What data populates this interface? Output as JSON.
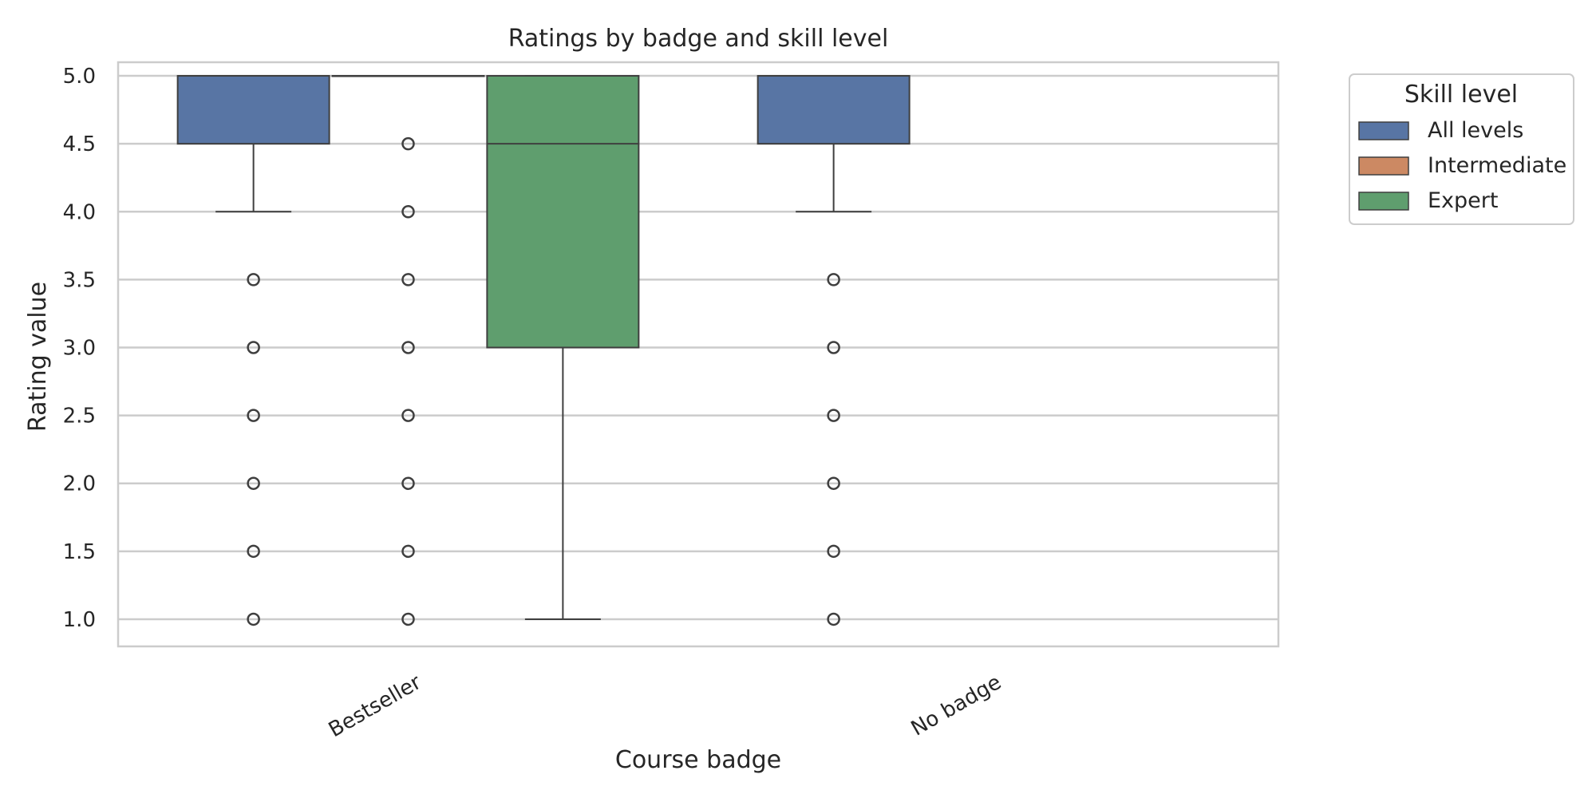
{
  "chart_data": {
    "type": "box",
    "title": "Ratings by badge and skill level",
    "xlabel": "Course badge",
    "ylabel": "Rating value",
    "categories": [
      "Bestseller",
      "No badge"
    ],
    "ylim": [
      0.8,
      5.1
    ],
    "yticks": [
      "1.0",
      "1.5",
      "2.0",
      "2.5",
      "3.0",
      "3.5",
      "4.0",
      "4.5",
      "5.0"
    ],
    "grid": true,
    "legend": {
      "title": "Skill level",
      "placement": "outside top-right",
      "entries": [
        {
          "name": "All levels",
          "color": "#5875a4"
        },
        {
          "name": "Intermediate",
          "color": "#cc8963"
        },
        {
          "name": "Expert",
          "color": "#5f9e6e"
        }
      ]
    },
    "series": [
      {
        "name": "All levels",
        "color": "#5875a4",
        "boxes": [
          {
            "category": "Bestseller",
            "min": 4.0,
            "q1": 4.5,
            "median": 5.0,
            "q3": 5.0,
            "max": 5.0,
            "outliers": [
              3.5,
              3.0,
              2.5,
              2.0,
              1.5,
              1.0
            ]
          },
          {
            "category": "No badge",
            "min": 4.0,
            "q1": 4.5,
            "median": 5.0,
            "q3": 5.0,
            "max": 5.0,
            "outliers": [
              3.5,
              3.0,
              2.5,
              2.0,
              1.5,
              1.0
            ]
          }
        ]
      },
      {
        "name": "Intermediate",
        "color": "#cc8963",
        "boxes": [
          {
            "category": "Bestseller",
            "min": 5.0,
            "q1": 5.0,
            "median": 5.0,
            "q3": 5.0,
            "max": 5.0,
            "outliers": [
              4.5,
              4.0,
              3.5,
              3.0,
              2.5,
              2.0,
              1.5,
              1.0
            ]
          }
        ]
      },
      {
        "name": "Expert",
        "color": "#5f9e6e",
        "boxes": [
          {
            "category": "Bestseller",
            "min": 1.0,
            "q1": 3.0,
            "median": 4.5,
            "q3": 5.0,
            "max": 5.0,
            "outliers": []
          }
        ]
      }
    ]
  }
}
